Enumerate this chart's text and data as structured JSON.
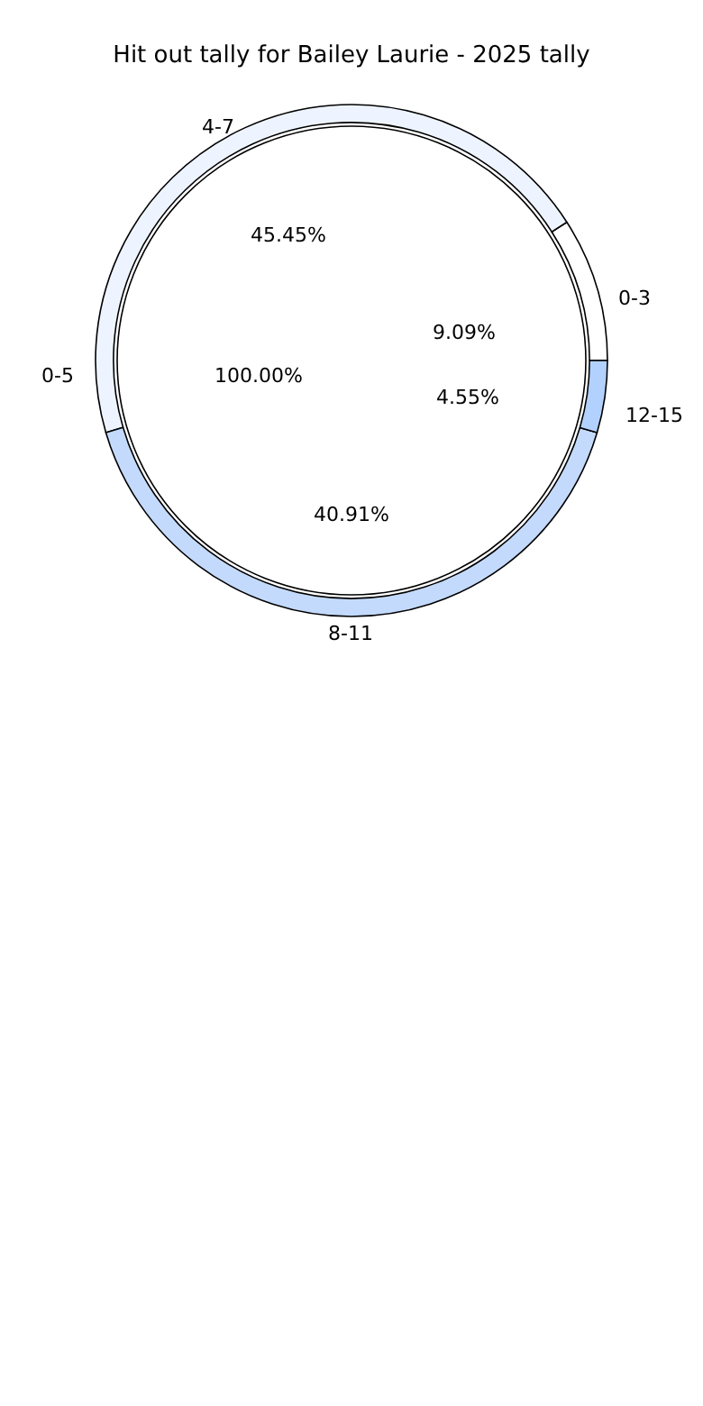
{
  "chart_data": [
    {
      "type": "pie",
      "title": "Hit out tally for Bailey Laurie - 2025 tally",
      "categories": [
        "0-5"
      ],
      "values": [
        100
      ],
      "colors": [
        "#ffffff"
      ],
      "value_labels": [
        "100.00%"
      ]
    },
    {
      "type": "donut",
      "categories": [
        "0-3",
        "4-7",
        "8-11",
        "12-15"
      ],
      "values": [
        9.09,
        45.45,
        40.91,
        4.55
      ],
      "colors": [
        "#ffffff",
        "#eef4ff",
        "#c4dafc",
        "#b3d1ff"
      ],
      "value_labels": [
        "9.09%",
        "45.45%",
        "40.91%",
        "4.55%"
      ]
    }
  ]
}
